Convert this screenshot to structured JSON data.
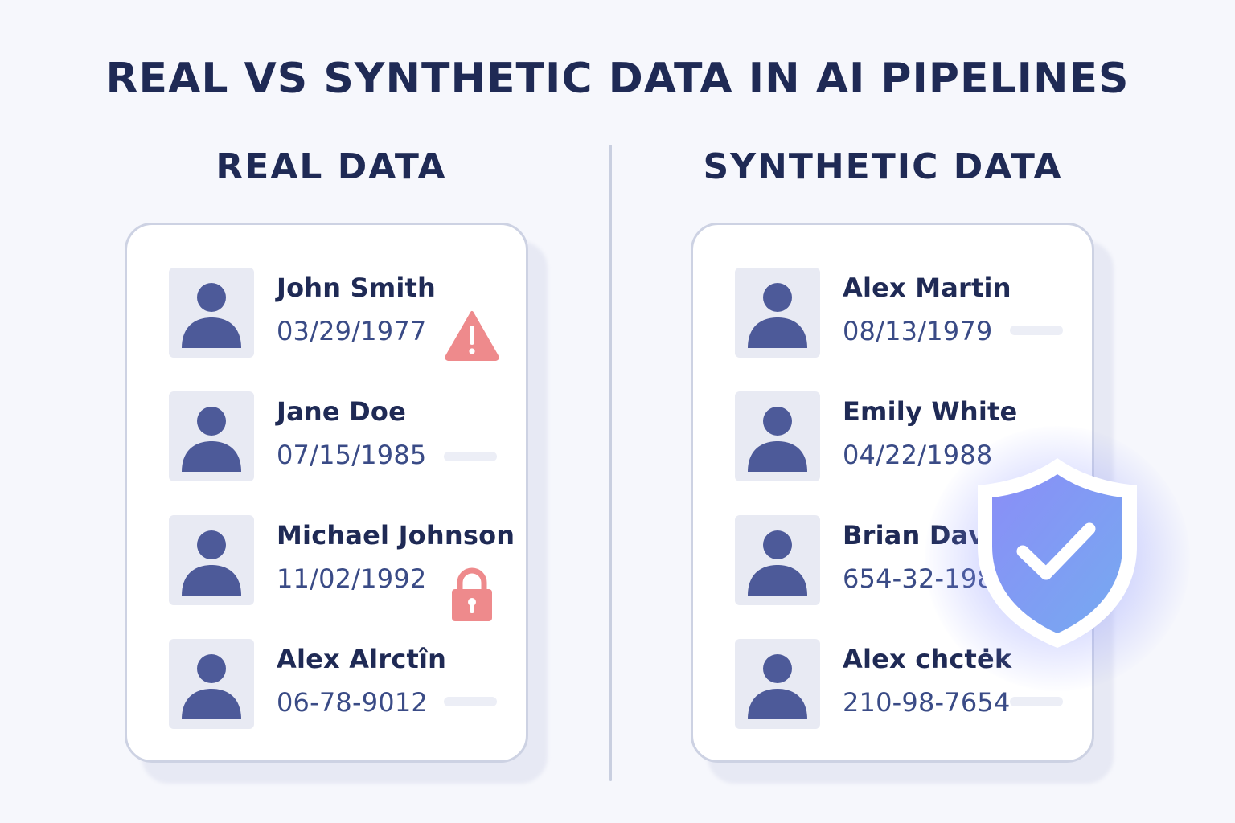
{
  "title": "REAL VS SYNTHETIC DATA IN AI PIPELINES",
  "real": {
    "heading": "REAL DATA",
    "rows": [
      {
        "name": "John Smith",
        "value": "03/29/1977",
        "marker": "warning-icon"
      },
      {
        "name": "Jane Doe",
        "value": "07/15/1985",
        "marker": "placeholder-bar"
      },
      {
        "name": "Michael Johnson",
        "value": "11/02/1992",
        "marker": "lock-icon"
      },
      {
        "name": "Alex Alrctîn",
        "value": "06-78-9012",
        "marker": "placeholder-bar"
      }
    ]
  },
  "synthetic": {
    "heading": "SYNTHETIC DATA",
    "rows": [
      {
        "name": "Alex Martin",
        "value": "08/13/1979",
        "marker": "placeholder-bar"
      },
      {
        "name": "Emily White",
        "value": "04/22/1988",
        "marker": ""
      },
      {
        "name": "Brian Davi",
        "value": "654-32-198",
        "marker": ""
      },
      {
        "name": "Alex chctėk",
        "value": "210-98-7654",
        "marker": "placeholder-bar"
      }
    ],
    "badge": "shield-check-icon"
  },
  "colors": {
    "title": "#1f2a55",
    "avatar": "#4d5a99",
    "alert": "#ee8a8c",
    "shield": "#7d93f5"
  }
}
